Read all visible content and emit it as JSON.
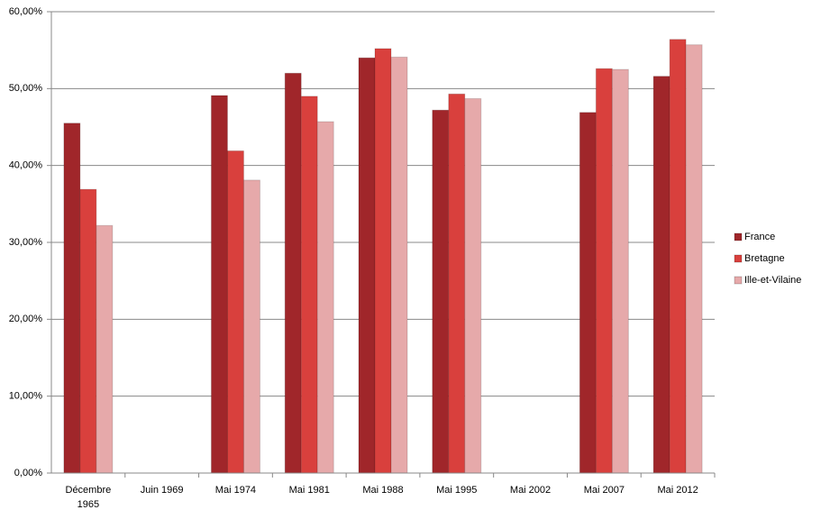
{
  "chart_data": {
    "type": "bar",
    "categories": [
      "Décembre 1965",
      "Juin 1969",
      "Mai 1974",
      "Mai 1981",
      "Mai 1988",
      "Mai 1995",
      "Mai 2002",
      "Mai 2007",
      "Mai 2012"
    ],
    "series": [
      {
        "name": "France",
        "color": "#a0262a",
        "values": [
          45.5,
          null,
          49.1,
          52.0,
          54.0,
          47.2,
          null,
          46.9,
          51.6
        ]
      },
      {
        "name": "Bretagne",
        "color": "#d9403d",
        "values": [
          36.9,
          null,
          41.9,
          49.0,
          55.2,
          49.3,
          null,
          52.6,
          56.4
        ]
      },
      {
        "name": "Ille-et-Vilaine",
        "color": "#e6a9aa",
        "values": [
          32.2,
          null,
          38.1,
          45.7,
          54.1,
          48.7,
          null,
          52.5,
          55.7
        ]
      }
    ],
    "ylim": [
      0,
      60
    ],
    "yticks": [
      {
        "value": 0,
        "label": "0,00%"
      },
      {
        "value": 10,
        "label": "10,00%"
      },
      {
        "value": 20,
        "label": "20,00%"
      },
      {
        "value": 30,
        "label": "30,00%"
      },
      {
        "value": 40,
        "label": "40,00%"
      },
      {
        "value": 50,
        "label": "50,00%"
      },
      {
        "value": 60,
        "label": "60,00%"
      }
    ],
    "grid": true,
    "legend": "right"
  }
}
